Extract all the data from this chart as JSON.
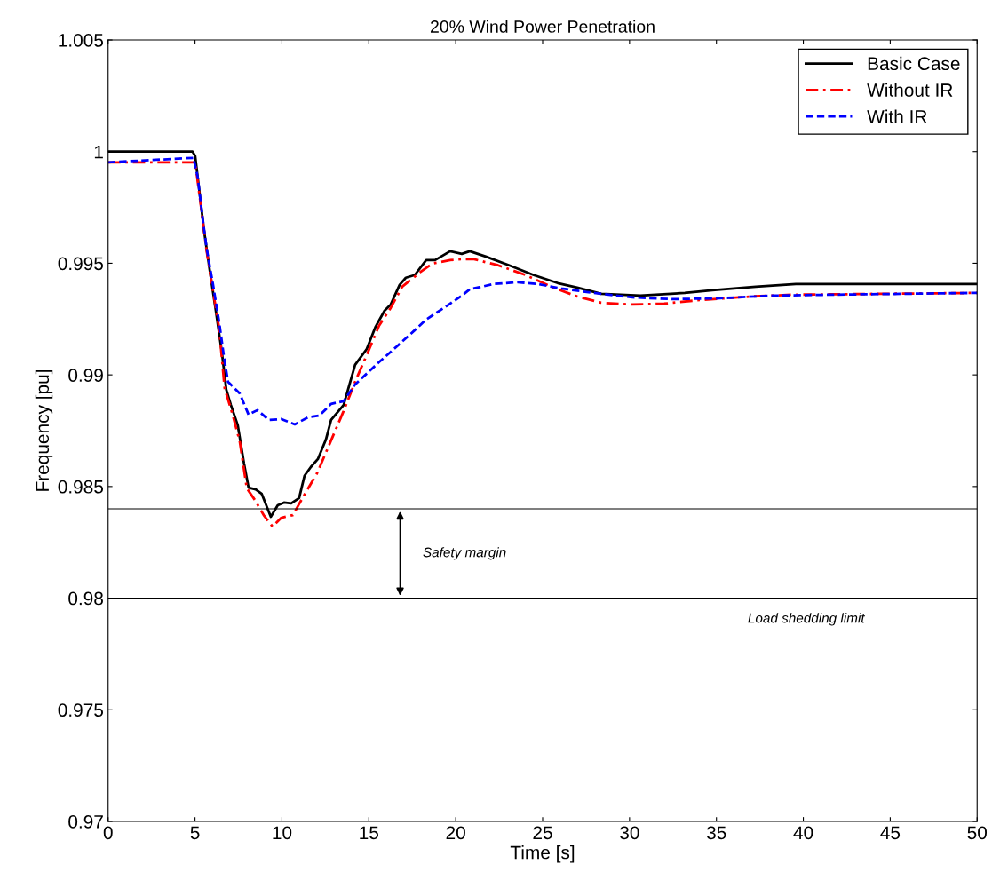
{
  "chart_data": {
    "type": "line",
    "title": "20% Wind Power Penetration",
    "xlabel": "Time [s]",
    "ylabel": "Frequency [pu]",
    "xlim": [
      0,
      50
    ],
    "xticks": [
      0,
      5,
      10,
      15,
      20,
      25,
      30,
      35,
      40,
      45,
      50
    ],
    "ylim": [
      0.97,
      1.005
    ],
    "yticks": [
      0.97,
      0.975,
      0.98,
      0.985,
      0.99,
      0.995,
      1,
      1.005
    ],
    "grid": false,
    "legend": "top right",
    "marker": "none",
    "series": [
      {
        "name": "Basic Case",
        "color": "#000000",
        "line_style": "solid",
        "x": [
          0,
          4.86,
          5.01,
          5.52,
          5.88,
          6.19,
          6.54,
          6.8,
          7.06,
          7.46,
          7.82,
          8.08,
          8.49,
          8.84,
          9.36,
          9.76,
          10.12,
          10.53,
          10.99,
          11.3,
          11.66,
          12.07,
          12.53,
          12.83,
          13.55,
          14.21,
          14.88,
          15.39,
          15.9,
          16.26,
          16.77,
          17.13,
          17.64,
          18.3,
          18.81,
          19.68,
          20.35,
          20.81,
          21.73,
          23.11,
          24.49,
          25.87,
          26.99,
          28.37,
          30.62,
          33.18,
          34.76,
          37.27,
          39.57,
          50
        ],
        "values": [
          1.0,
          1.0,
          0.9998,
          0.99646,
          0.99451,
          0.99291,
          0.99104,
          0.98933,
          0.98866,
          0.98774,
          0.98603,
          0.98495,
          0.98487,
          0.98467,
          0.98364,
          0.98416,
          0.98428,
          0.98424,
          0.98448,
          0.98548,
          0.98587,
          0.98623,
          0.9871,
          0.98798,
          0.98865,
          0.99045,
          0.99116,
          0.99216,
          0.99287,
          0.99315,
          0.99403,
          0.99435,
          0.99447,
          0.99514,
          0.99514,
          0.99554,
          0.99542,
          0.99554,
          0.9953,
          0.9949,
          0.99447,
          0.99411,
          0.99391,
          0.99363,
          0.99355,
          0.99367,
          0.99379,
          0.99395,
          0.99407,
          0.99407
        ]
      },
      {
        "name": "Without IR",
        "color": "#ff0000",
        "line_style": "dashdot",
        "x": [
          0,
          5.01,
          5.37,
          5.67,
          6.03,
          6.39,
          6.7,
          7.16,
          7.57,
          7.98,
          8.44,
          8.95,
          9.46,
          9.97,
          10.63,
          11.3,
          12.02,
          12.68,
          13.55,
          14.21,
          14.88,
          15.59,
          16.26,
          16.92,
          17.94,
          18.66,
          19.68,
          20.35,
          21.06,
          22.44,
          24.03,
          25.61,
          26.99,
          28.37,
          30.16,
          32.0,
          34.05,
          37.01,
          39.31,
          50
        ],
        "values": [
          0.99952,
          0.99952,
          0.99737,
          0.99554,
          0.99379,
          0.99208,
          0.98941,
          0.98822,
          0.98703,
          0.98492,
          0.9844,
          0.98372,
          0.9832,
          0.9836,
          0.98372,
          0.98464,
          0.98559,
          0.98679,
          0.98838,
          0.98969,
          0.99089,
          0.9922,
          0.993,
          0.99395,
          0.99459,
          0.99499,
          0.99514,
          0.99518,
          0.99518,
          0.99491,
          0.99447,
          0.99391,
          0.99351,
          0.99323,
          0.99315,
          0.99319,
          0.99335,
          0.99351,
          0.99359,
          0.99367
        ]
      },
      {
        "name": "With IR",
        "color": "#0000ff",
        "line_style": "dashed",
        "x": [
          0,
          4.91,
          5.16,
          5.42,
          5.67,
          6.03,
          6.39,
          6.65,
          6.9,
          7.57,
          8.08,
          8.59,
          9.25,
          9.97,
          10.74,
          11.5,
          12.17,
          12.83,
          13.55,
          14.21,
          15.59,
          16.62,
          17.64,
          18.3,
          19.48,
          20.35,
          20.81,
          22.19,
          23.57,
          24.69,
          26.07,
          27.91,
          30.16,
          32.46,
          35.22,
          38.19,
          41.62,
          50
        ],
        "values": [
          0.99952,
          0.99972,
          0.99884,
          0.99713,
          0.99566,
          0.99407,
          0.99236,
          0.99089,
          0.98969,
          0.98917,
          0.98822,
          0.98842,
          0.98798,
          0.98802,
          0.98778,
          0.9881,
          0.98818,
          0.9887,
          0.98882,
          0.98957,
          0.99057,
          0.99128,
          0.992,
          0.99248,
          0.99308,
          0.99355,
          0.99383,
          0.99407,
          0.99415,
          0.99407,
          0.99387,
          0.99367,
          0.99347,
          0.99339,
          0.99343,
          0.99355,
          0.99359,
          0.99367
        ]
      }
    ],
    "ref_lines": [
      {
        "axis": "y",
        "value": 0.984,
        "color": "#000000"
      },
      {
        "axis": "y",
        "value": 0.98,
        "color": "#000000"
      }
    ],
    "annotations": [
      "Safety margin",
      "Load shedding limit"
    ]
  }
}
